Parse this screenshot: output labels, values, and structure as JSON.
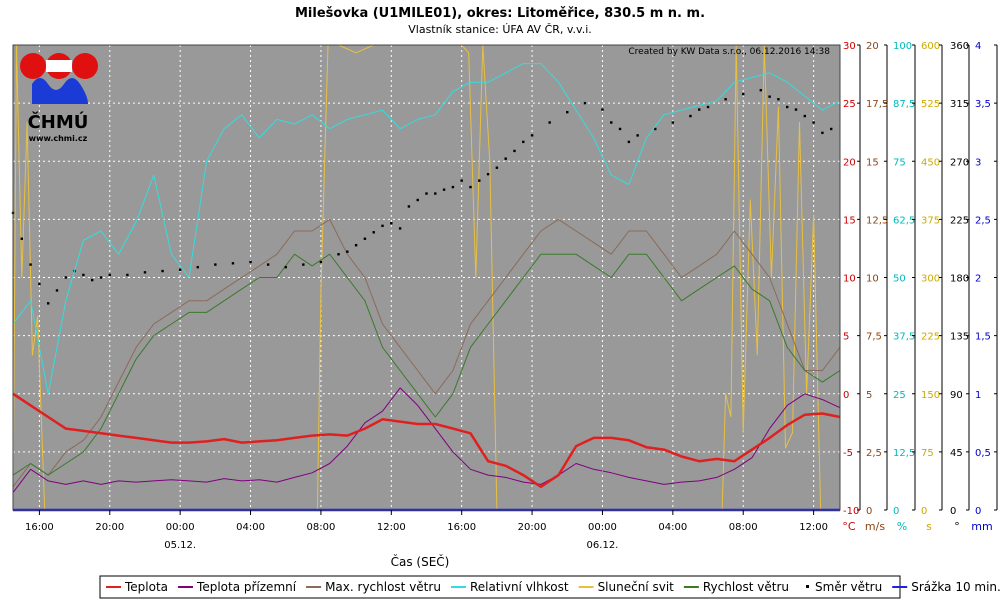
{
  "title": "Milešovka (U1MILE01), okres: Litoměřice, 830.5 m n. m.",
  "subtitle": "Vlastník stanice: ÚFA AV ČR, v.v.i.",
  "credit": "Created by KW Data s.r.o., 06.12.2016 14:38",
  "logo": {
    "name": "ČHMÚ",
    "url": "www.chmi.cz"
  },
  "x_label": "Čas (SEČ)",
  "chart_data": {
    "type": "line",
    "x_ticks": [
      "16:00",
      "20:00",
      "00:00",
      "04:00",
      "08:00",
      "12:00",
      "16:00",
      "20:00",
      "00:00",
      "04:00",
      "08:00",
      "12:00"
    ],
    "date_labels": [
      {
        "at": "00:00",
        "label": "05.12."
      },
      {
        "at": "00:00",
        "label": "06.12."
      }
    ],
    "x_hours_start": 14.5,
    "x_hours_end": 61.5,
    "grid": true,
    "legend_position": "bottom",
    "axes": [
      {
        "unit": "°C",
        "color": "#cc0000",
        "min": -10,
        "max": 30,
        "ticks": [
          "-10",
          "-5",
          "0",
          "5",
          "10",
          "15",
          "20",
          "25",
          "30"
        ]
      },
      {
        "unit": "m/s",
        "color": "#8b4513",
        "min": 0,
        "max": 20,
        "ticks": [
          "0",
          "2,5",
          "5",
          "7,5",
          "10",
          "12,5",
          "15",
          "17,5",
          "20"
        ]
      },
      {
        "unit": "%",
        "color": "#00bbbb",
        "min": 0,
        "max": 100,
        "ticks": [
          "0",
          "12,5",
          "25",
          "37,5",
          "50",
          "62,5",
          "75",
          "87,5",
          "100"
        ]
      },
      {
        "unit": "s",
        "color": "#ccaa00",
        "min": 0,
        "max": 600,
        "ticks": [
          "0",
          "75",
          "150",
          "225",
          "300",
          "375",
          "450",
          "525",
          "600"
        ]
      },
      {
        "unit": "°",
        "color": "#000000",
        "min": 0,
        "max": 360,
        "ticks": [
          "0",
          "45",
          "90",
          "135",
          "180",
          "225",
          "270",
          "315",
          "360"
        ]
      },
      {
        "unit": "mm",
        "color": "#0000cc",
        "min": 0,
        "max": 4,
        "ticks": [
          "0",
          "0,5",
          "1",
          "1,5",
          "2",
          "2,5",
          "3",
          "3,5",
          "4"
        ]
      }
    ],
    "series": [
      {
        "name": "Teplota",
        "color": "#e02020",
        "axis": 0,
        "width": 2.5,
        "x": [
          14.5,
          15.5,
          16.5,
          17.5,
          18.5,
          19.5,
          20.5,
          21.5,
          22.5,
          23.5,
          24.5,
          25.5,
          26.5,
          27.5,
          28.5,
          29.5,
          30.5,
          31.5,
          32.5,
          33.5,
          34.5,
          35.5,
          36.5,
          37.5,
          38.5,
          39.5,
          40.5,
          41.5,
          42.5,
          43.5,
          44.5,
          45.5,
          46.5,
          47.5,
          48.5,
          49.5,
          50.5,
          51.5,
          52.5,
          53.5,
          54.5,
          55.5,
          56.5,
          57.5,
          58.5,
          59.5,
          60.5,
          61.5
        ],
        "values": [
          0,
          -1,
          -2,
          -3,
          -3.2,
          -3.4,
          -3.6,
          -3.8,
          -4,
          -4.2,
          -4.2,
          -4.1,
          -3.9,
          -4.2,
          -4.1,
          -4.0,
          -3.8,
          -3.6,
          -3.5,
          -3.6,
          -3.0,
          -2.2,
          -2.4,
          -2.6,
          -2.6,
          -3.0,
          -3.4,
          -5.8,
          -6.2,
          -7.0,
          -8.0,
          -7.0,
          -4.5,
          -3.8,
          -3.8,
          -4.0,
          -4.6,
          -4.8,
          -5.4,
          -5.8,
          -5.6,
          -5.8,
          -4.8,
          -3.8,
          -2.7,
          -1.8,
          -1.7,
          -2.0
        ]
      },
      {
        "name": "Teplota přízemní",
        "color": "#800080",
        "axis": 0,
        "width": 1,
        "x": [
          14.5,
          15.5,
          16.5,
          17.5,
          18.5,
          19.5,
          20.5,
          21.5,
          22.5,
          23.5,
          24.5,
          25.5,
          26.5,
          27.5,
          28.5,
          29.5,
          30.5,
          31.5,
          32.5,
          33.5,
          34.5,
          35.5,
          36.5,
          37.5,
          38.5,
          39.5,
          40.5,
          41.5,
          42.5,
          43.5,
          44.5,
          45.5,
          46.5,
          47.5,
          48.5,
          49.5,
          50.5,
          51.5,
          52.5,
          53.5,
          54.5,
          55.5,
          56.5,
          57.5,
          58.5,
          59.5,
          60.5,
          61.5
        ],
        "values": [
          -8.5,
          -6.5,
          -7.5,
          -7.8,
          -7.5,
          -7.8,
          -7.5,
          -7.6,
          -7.5,
          -7.4,
          -7.5,
          -7.6,
          -7.3,
          -7.5,
          -7.4,
          -7.6,
          -7.2,
          -6.8,
          -6.0,
          -4.5,
          -2.5,
          -1.5,
          0.5,
          -1.0,
          -3.0,
          -5.0,
          -6.5,
          -7.0,
          -7.2,
          -7.6,
          -7.8,
          -7.0,
          -6.0,
          -6.5,
          -6.8,
          -7.2,
          -7.5,
          -7.8,
          -7.6,
          -7.5,
          -7.2,
          -6.5,
          -5.5,
          -3.0,
          -1.0,
          0.0,
          -0.5,
          -1.2
        ]
      },
      {
        "name": "Max. rychlost větru",
        "color": "#8b6a5a",
        "axis": 1,
        "width": 1,
        "x": [
          14.5,
          15.5,
          16.5,
          17.5,
          18.5,
          19.5,
          20.5,
          21.5,
          22.5,
          23.5,
          24.5,
          25.5,
          26.5,
          27.5,
          28.5,
          29.5,
          30.5,
          31.5,
          32.5,
          33.5,
          34.5,
          35.5,
          36.5,
          37.5,
          38.5,
          39.5,
          40.5,
          41.5,
          42.5,
          43.5,
          44.5,
          45.5,
          46.5,
          47.5,
          48.5,
          49.5,
          50.5,
          51.5,
          52.5,
          53.5,
          54.5,
          55.5,
          56.5,
          57.5,
          58.5,
          59.5,
          60.5,
          61.5
        ],
        "values": [
          1,
          2,
          1.5,
          2.5,
          3,
          4,
          5.5,
          7,
          8,
          8.5,
          9,
          9,
          9.5,
          10,
          10.5,
          11,
          12,
          12,
          12.5,
          11,
          10,
          8,
          7,
          6,
          5,
          6,
          8,
          9,
          10,
          11,
          12,
          12.5,
          12,
          11.5,
          11,
          12,
          12,
          11,
          10,
          10.5,
          11,
          12,
          11,
          10,
          8,
          6,
          6,
          7
        ]
      },
      {
        "name": "Relativní vlhkost",
        "color": "#33dddd",
        "axis": 2,
        "width": 1,
        "x": [
          14.5,
          15.5,
          16.5,
          17.5,
          18.5,
          19.5,
          20.5,
          21.5,
          22.5,
          23.5,
          24.5,
          25.5,
          26.5,
          27.5,
          28.5,
          29.5,
          30.5,
          31.5,
          32.5,
          33.5,
          34.5,
          35.5,
          36.5,
          37.5,
          38.5,
          39.5,
          40.5,
          41.5,
          42.5,
          43.5,
          44.5,
          45.5,
          46.5,
          47.5,
          48.5,
          49.5,
          50.5,
          51.5,
          52.5,
          53.5,
          54.5,
          55.5,
          56.5,
          57.5,
          58.5,
          59.5,
          60.5,
          61.5
        ],
        "values": [
          40,
          45,
          25,
          45,
          58,
          60,
          55,
          62,
          72,
          55,
          50,
          75,
          82,
          85,
          80,
          84,
          83,
          85,
          82,
          84,
          85,
          86,
          82,
          84,
          85,
          90,
          92,
          92,
          94,
          96,
          96,
          92,
          86,
          80,
          72,
          70,
          80,
          85,
          86,
          87,
          88,
          92,
          93,
          94,
          92,
          89,
          86,
          88
        ]
      },
      {
        "name": "Sluneční svit",
        "color": "#e8c040",
        "axis": 3,
        "width": 1,
        "x": [
          14.5,
          14.7,
          15.0,
          15.3,
          15.6,
          15.9,
          16.3,
          31.8,
          32.0,
          32.4,
          33.0,
          34.0,
          35.0,
          36.0,
          37.0,
          38.0,
          39.0,
          40.0,
          40.4,
          40.8,
          41.2,
          41.6,
          42.0,
          54.8,
          55.0,
          55.3,
          55.6,
          56.0,
          56.4,
          56.8,
          57.2,
          57.6,
          58.0,
          58.4,
          58.8,
          59.2,
          59.6,
          60.0,
          60.4,
          60.8,
          61.5
        ],
        "values": [
          0,
          600,
          300,
          500,
          200,
          250,
          0,
          0,
          280,
          600,
          600,
          590,
          600,
          600,
          600,
          600,
          600,
          600,
          590,
          300,
          600,
          450,
          0,
          0,
          150,
          120,
          600,
          100,
          400,
          200,
          600,
          300,
          520,
          80,
          100,
          500,
          150,
          380,
          0,
          0,
          0
        ]
      },
      {
        "name": "Rychlost větru",
        "color": "#3a7a2a",
        "axis": 1,
        "width": 1,
        "x": [
          14.5,
          15.5,
          16.5,
          17.5,
          18.5,
          19.5,
          20.5,
          21.5,
          22.5,
          23.5,
          24.5,
          25.5,
          26.5,
          27.5,
          28.5,
          29.5,
          30.5,
          31.5,
          32.5,
          33.5,
          34.5,
          35.5,
          36.5,
          37.5,
          38.5,
          39.5,
          40.5,
          41.5,
          42.5,
          43.5,
          44.5,
          45.5,
          46.5,
          47.5,
          48.5,
          49.5,
          50.5,
          51.5,
          52.5,
          53.5,
          54.5,
          55.5,
          56.5,
          57.5,
          58.5,
          59.5,
          60.5,
          61.5
        ],
        "values": [
          1.5,
          2,
          1.5,
          2,
          2.5,
          3.5,
          5,
          6.5,
          7.5,
          8,
          8.5,
          8.5,
          9,
          9.5,
          10,
          10,
          11,
          10.5,
          11,
          10,
          9,
          7,
          6,
          5,
          4,
          5,
          7,
          8,
          9,
          10,
          11,
          11,
          11,
          10.5,
          10,
          11,
          11,
          10,
          9,
          9.5,
          10,
          10.5,
          9.5,
          9,
          7,
          6,
          5.5,
          6
        ]
      },
      {
        "name": "Směr větru",
        "color": "#000000",
        "axis": 4,
        "type": "scatter",
        "x": [
          14.5,
          15.0,
          15.5,
          16.0,
          16.5,
          17.0,
          17.5,
          18.0,
          18.5,
          19.0,
          19.5,
          20.0,
          21.0,
          22.0,
          23.0,
          24.0,
          25.0,
          26.0,
          27.0,
          28.0,
          29.0,
          30.0,
          31.0,
          32.0,
          33.0,
          33.5,
          34.0,
          34.5,
          35.0,
          35.5,
          36.0,
          36.5,
          37.0,
          37.5,
          38.0,
          38.5,
          39.0,
          39.5,
          40.0,
          40.5,
          41.0,
          41.5,
          42.0,
          42.5,
          43.0,
          43.5,
          44.0,
          45.0,
          46.0,
          47.0,
          48.0,
          48.5,
          49.0,
          49.5,
          50.0,
          51.0,
          52.0,
          53.0,
          53.5,
          54.0,
          55.0,
          56.0,
          57.0,
          57.5,
          58.0,
          58.5,
          59.0,
          59.5,
          60.0,
          60.5,
          61.0
        ],
        "values": [
          230,
          210,
          190,
          175,
          160,
          170,
          180,
          185,
          182,
          178,
          180,
          182,
          182,
          184,
          185,
          186,
          188,
          190,
          191,
          192,
          190,
          188,
          190,
          192,
          198,
          200,
          205,
          210,
          215,
          220,
          222,
          218,
          235,
          240,
          245,
          245,
          248,
          250,
          255,
          250,
          255,
          260,
          265,
          272,
          278,
          285,
          290,
          300,
          308,
          315,
          310,
          300,
          295,
          285,
          290,
          295,
          300,
          305,
          310,
          312,
          318,
          322,
          325,
          320,
          318,
          312,
          310,
          305,
          300,
          292,
          295
        ]
      },
      {
        "name": "Srážka 10 min.",
        "color": "#2020e0",
        "axis": 5,
        "width": 2.5,
        "x": [
          14.5,
          61.5
        ],
        "values": [
          0,
          0
        ]
      }
    ]
  }
}
